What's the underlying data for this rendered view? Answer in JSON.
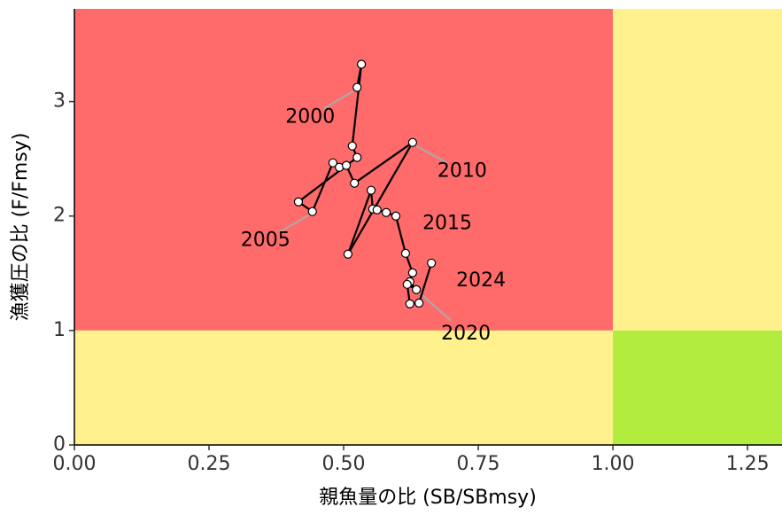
{
  "chart_data": {
    "type": "scatter",
    "x_label": "親魚量の比 (SB/SBmsy)",
    "y_label": "漁獲圧の比 (F/Fmsy)",
    "xlim": [
      0,
      1.314
    ],
    "ylim": [
      0,
      3.81
    ],
    "xticks": [
      {
        "value": 0,
        "label": "0.00"
      },
      0.25,
      {
        "value": 0.5,
        "label": "0.50"
      },
      0.75,
      {
        "value": 1,
        "label": "1.00"
      },
      1.25
    ],
    "yticks": [
      0,
      1,
      2,
      3
    ],
    "reference": {
      "x": 1,
      "y": 1
    },
    "zone_colors": {
      "overfished_overfishing": "#ff6b6b",
      "caution": "#fff28c",
      "healthy": "#b2ec3c"
    },
    "connect_points": true,
    "point_color": "#ffffff",
    "line_color": "#000000",
    "x": [
      0.525,
      0.533,
      0.516,
      0.525,
      0.416,
      0.442,
      0.48,
      0.492,
      0.505,
      0.52,
      0.628,
      0.508,
      0.551,
      0.554,
      0.562,
      0.579,
      0.597,
      0.615,
      0.628,
      0.623,
      0.635,
      0.618,
      0.623,
      0.64,
      0.663
    ],
    "y": [
      3.124,
      3.326,
      2.612,
      2.512,
      2.124,
      2.039,
      2.465,
      2.426,
      2.442,
      2.287,
      2.643,
      1.667,
      2.225,
      2.062,
      2.054,
      2.031,
      2.0,
      1.674,
      1.504,
      1.426,
      1.357,
      1.403,
      1.233,
      1.24,
      1.589
    ],
    "annotations": [
      {
        "text": "2000",
        "point": 0
      },
      {
        "text": "2005",
        "point": 5
      },
      {
        "text": "2010",
        "point": 10
      },
      {
        "text": "2015",
        "point": 15
      },
      {
        "text": "2020",
        "point": 20
      },
      {
        "text": "2024",
        "point": 24
      }
    ]
  }
}
